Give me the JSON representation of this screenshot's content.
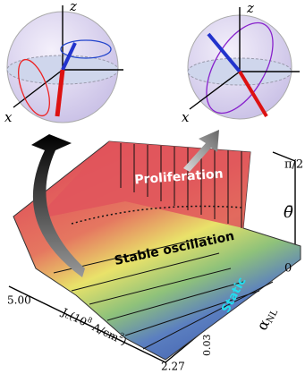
{
  "spheres": [
    {
      "z": "z",
      "x": "x"
    },
    {
      "z": "z",
      "x": "x"
    }
  ],
  "plot": {
    "theta_ticks": {
      "top": "π/2",
      "bottom": "0"
    },
    "theta_label": "θ̄",
    "regions": {
      "proliferation": "Proliferation",
      "stable": "Stable oscillation",
      "static": "Static"
    },
    "alpha_label": {
      "symbol": "α",
      "sub": "NL"
    },
    "alpha_tick": "0.03",
    "j_label": {
      "main": "J",
      "sub": "c",
      "pre": "(10",
      "exp": "8",
      "unit": " A/cm",
      "exp2": "2",
      "close": ")"
    },
    "j_ticks": {
      "start": "5.00",
      "end": "2.27"
    }
  }
}
